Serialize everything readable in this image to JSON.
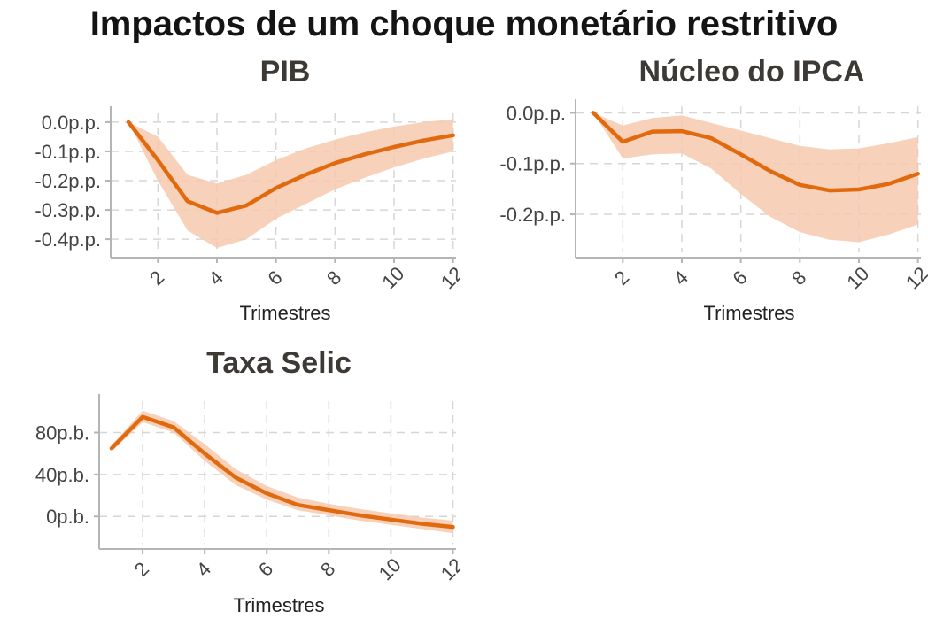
{
  "title": "Impactos de um choque monetário restritivo",
  "colors": {
    "line": "#e26a0e",
    "band": "#f6c9ae",
    "grid": "#d6d6d6",
    "axis": "#b5b5b5",
    "tick_text": "#444444"
  },
  "chart_data": [
    {
      "type": "line",
      "title": "PIB",
      "xlabel": "Trimestres",
      "ylabel": "",
      "x": [
        1,
        2,
        3,
        4,
        5,
        6,
        7,
        8,
        9,
        10,
        11,
        12
      ],
      "series": [
        {
          "values": [
            0.0,
            -0.13,
            -0.27,
            -0.31,
            -0.285,
            -0.225,
            -0.18,
            -0.14,
            -0.11,
            -0.085,
            -0.063,
            -0.045
          ]
        }
      ],
      "band_lower": [
        0.0,
        -0.2,
        -0.37,
        -0.43,
        -0.4,
        -0.33,
        -0.28,
        -0.23,
        -0.19,
        -0.155,
        -0.125,
        -0.1
      ],
      "band_upper": [
        0.0,
        -0.05,
        -0.18,
        -0.21,
        -0.18,
        -0.13,
        -0.09,
        -0.06,
        -0.035,
        -0.015,
        0.0,
        0.01
      ],
      "xticks": [
        "2",
        "4",
        "6",
        "8",
        "10",
        "12"
      ],
      "yticks": [
        0.0,
        -0.1,
        -0.2,
        -0.3,
        -0.4
      ],
      "ytick_labels": [
        "0.0p.p.",
        "-0.1p.p.",
        "-0.2p.p.",
        "-0.3p.p.",
        "-0.4p.p."
      ],
      "xlim": [
        0.4,
        12.1
      ],
      "ylim": [
        -0.445,
        0.03
      ],
      "grid": true
    },
    {
      "type": "line",
      "title": "Núcleo do IPCA",
      "xlabel": "Trimestres",
      "ylabel": "",
      "x": [
        1,
        2,
        3,
        4,
        5,
        6,
        7,
        8,
        9,
        10,
        11,
        12
      ],
      "series": [
        {
          "values": [
            0.0,
            -0.057,
            -0.037,
            -0.036,
            -0.05,
            -0.082,
            -0.115,
            -0.142,
            -0.153,
            -0.151,
            -0.14,
            -0.12
          ]
        }
      ],
      "band_lower": [
        0.0,
        -0.09,
        -0.082,
        -0.08,
        -0.11,
        -0.16,
        -0.205,
        -0.235,
        -0.25,
        -0.255,
        -0.24,
        -0.22
      ],
      "band_upper": [
        0.0,
        -0.025,
        -0.01,
        -0.005,
        -0.02,
        -0.035,
        -0.05,
        -0.065,
        -0.072,
        -0.07,
        -0.06,
        -0.048
      ],
      "xticks": [
        "2",
        "4",
        "6",
        "8",
        "10",
        "12"
      ],
      "yticks": [
        0.0,
        -0.1,
        -0.2
      ],
      "ytick_labels": [
        "0.0p.p.",
        "-0.1p.p.",
        "-0.2p.p."
      ],
      "xlim": [
        0.4,
        12.1
      ],
      "ylim": [
        -0.275,
        0.013
      ],
      "grid": true
    },
    {
      "type": "line",
      "title": "Taxa Selic",
      "xlabel": "Trimestres",
      "ylabel": "",
      "x": [
        1,
        2,
        3,
        4,
        5,
        6,
        7,
        8,
        9,
        10,
        11,
        12
      ],
      "series": [
        {
          "values": [
            65,
            95,
            85,
            60,
            37,
            22,
            11,
            6,
            1,
            -3,
            -7,
            -10
          ]
        }
      ],
      "band_lower": [
        62,
        90,
        80,
        53,
        30,
        16,
        6,
        1,
        -4,
        -8,
        -12,
        -16
      ],
      "band_upper": [
        68,
        101,
        91,
        69,
        45,
        29,
        18,
        12,
        7,
        3,
        -1,
        -4
      ],
      "xticks": [
        "2",
        "4",
        "6",
        "8",
        "10",
        "12"
      ],
      "yticks": [
        80,
        40,
        0
      ],
      "ytick_labels": [
        "80p.b.",
        "40p.b.",
        "0p.b."
      ],
      "xlim": [
        0.6,
        12.1
      ],
      "ylim": [
        -26,
        110
      ],
      "grid": true
    }
  ]
}
